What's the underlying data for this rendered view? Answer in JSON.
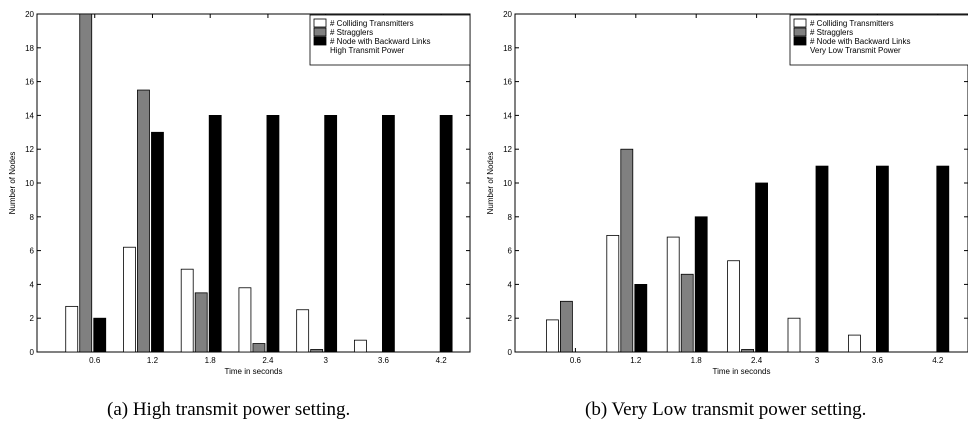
{
  "chart_data": [
    {
      "type": "bar",
      "categories": [
        "0.6",
        "1.2",
        "1.8",
        "2.4",
        "3",
        "3.6",
        "4.2"
      ],
      "xlabel": "Time in seconds",
      "ylabel": "Number of Nodes",
      "ylim": [
        0,
        20
      ],
      "yticks": [
        "0",
        "2",
        "4",
        "6",
        "8",
        "10",
        "12",
        "14",
        "16",
        "18",
        "20"
      ],
      "legend_position": "top-right",
      "legend_note": "High Transmit Power",
      "series": [
        {
          "name": "# Colliding Transmitters",
          "values": [
            2.7,
            6.2,
            4.9,
            3.8,
            2.5,
            0.7,
            0
          ],
          "color": "#ffffff"
        },
        {
          "name": "# Stragglers",
          "values": [
            20,
            15.5,
            3.5,
            0.5,
            0.15,
            0,
            0
          ],
          "color": "#808080"
        },
        {
          "name": "# Node with Backward Links",
          "values": [
            2,
            13,
            14,
            14,
            14,
            14,
            14
          ],
          "color": "#000000"
        }
      ],
      "caption": "(a) High transmit power setting."
    },
    {
      "type": "bar",
      "categories": [
        "0.6",
        "1.2",
        "1.8",
        "2.4",
        "3",
        "3.6",
        "4.2"
      ],
      "xlabel": "Time in seconds",
      "ylabel": "Number of Nodes",
      "ylim": [
        0,
        20
      ],
      "yticks": [
        "0",
        "2",
        "4",
        "6",
        "8",
        "10",
        "12",
        "14",
        "16",
        "18",
        "20"
      ],
      "legend_position": "top-right",
      "legend_note": "Very Low Transmit Power",
      "series": [
        {
          "name": "# Colliding Transmitters",
          "values": [
            1.9,
            6.9,
            6.8,
            5.4,
            2,
            1,
            0
          ],
          "color": "#ffffff"
        },
        {
          "name": "# Stragglers",
          "values": [
            3,
            12,
            4.6,
            0.15,
            0,
            0,
            0
          ],
          "color": "#808080"
        },
        {
          "name": "# Node with Backward Links",
          "values": [
            0,
            4,
            8,
            10,
            11,
            11,
            11
          ],
          "color": "#000000"
        }
      ],
      "caption": "(b) Very Low transmit power setting."
    }
  ]
}
